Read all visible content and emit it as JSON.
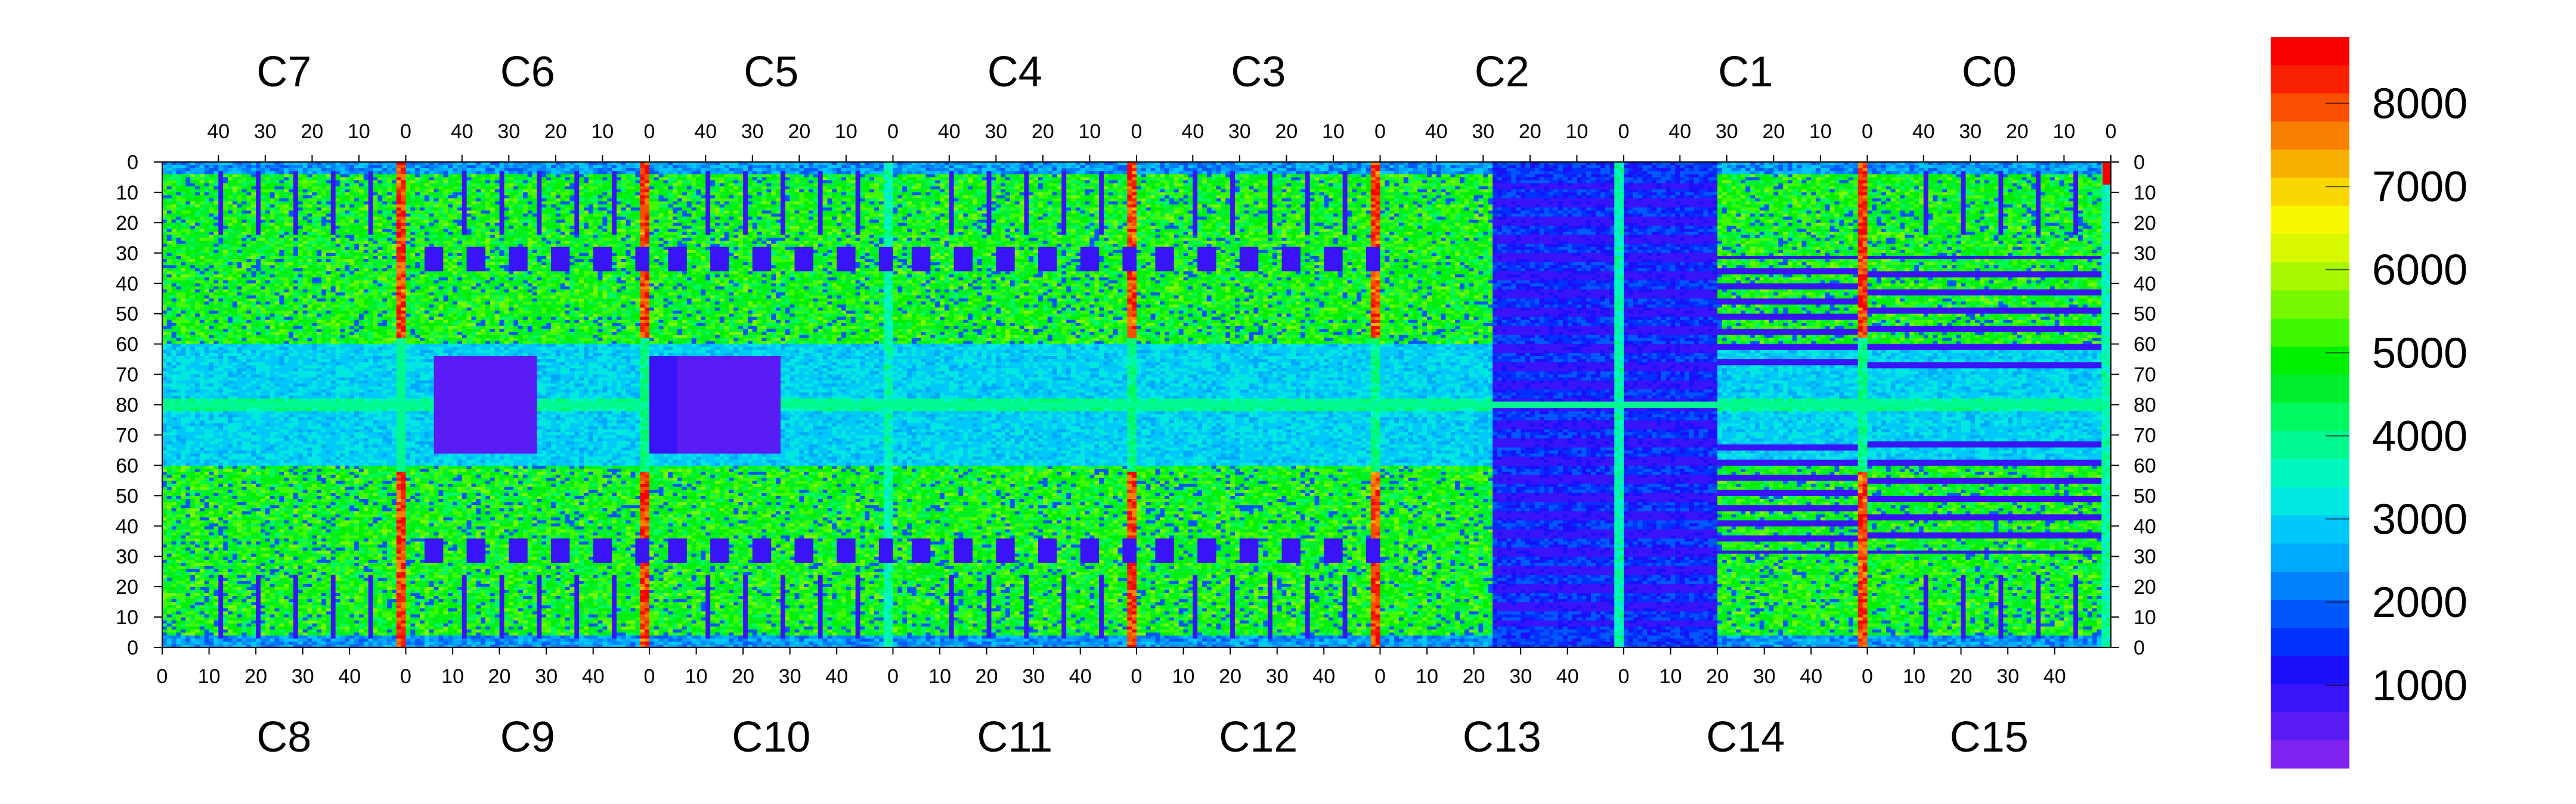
{
  "chart_data": {
    "type": "heatmap",
    "title": "",
    "xlabel": "",
    "ylabel": "",
    "chip_labels_top": [
      "C7",
      "C6",
      "C5",
      "C4",
      "C3",
      "C2",
      "C1",
      "C0"
    ],
    "chip_labels_bottom": [
      "C8",
      "C9",
      "C10",
      "C11",
      "C12",
      "C13",
      "C14",
      "C15"
    ],
    "x_ticks_top": [
      "40",
      "30",
      "20",
      "10",
      "0"
    ],
    "x_ticks_bottom": [
      "0",
      "10",
      "20",
      "30",
      "40"
    ],
    "x_tick_values_top": [
      40,
      30,
      20,
      10,
      0
    ],
    "x_tick_values_bottom": [
      0,
      10,
      20,
      30,
      40
    ],
    "columns_per_chip": 52,
    "rows_per_half": 80,
    "y_ticks": [
      "0",
      "10",
      "20",
      "30",
      "40",
      "50",
      "60",
      "70",
      "80",
      "70",
      "60",
      "50",
      "40",
      "30",
      "20",
      "10",
      "0"
    ],
    "colorbar": {
      "ticks": [
        "1000",
        "2000",
        "3000",
        "4000",
        "5000",
        "6000",
        "7000",
        "8000"
      ],
      "tick_values": [
        1000,
        2000,
        3000,
        4000,
        5000,
        6000,
        7000,
        8000
      ],
      "range": [
        0,
        8800
      ],
      "colors": [
        "#7f22f0",
        "#5a1cf5",
        "#3a14f8",
        "#1a10fa",
        "#0030fc",
        "#0058fc",
        "#0080fc",
        "#00a8fc",
        "#00c8f8",
        "#00e8e0",
        "#00f8c0",
        "#00f890",
        "#00f860",
        "#00f030",
        "#00f000",
        "#40f800",
        "#78f800",
        "#a8f800",
        "#d8f800",
        "#f8f800",
        "#f8d800",
        "#f8b000",
        "#f88000",
        "#f85000",
        "#f82000",
        "#f80000"
      ]
    },
    "features": {
      "hot_columns_chips": [
        "C7/C8",
        "C6/C9",
        "C4/C11",
        "C3/C12",
        "C1/C14"
      ],
      "dead_region_chips": [
        "C2",
        "C13",
        "C14"
      ],
      "hot_corner_chip": "C0"
    }
  }
}
